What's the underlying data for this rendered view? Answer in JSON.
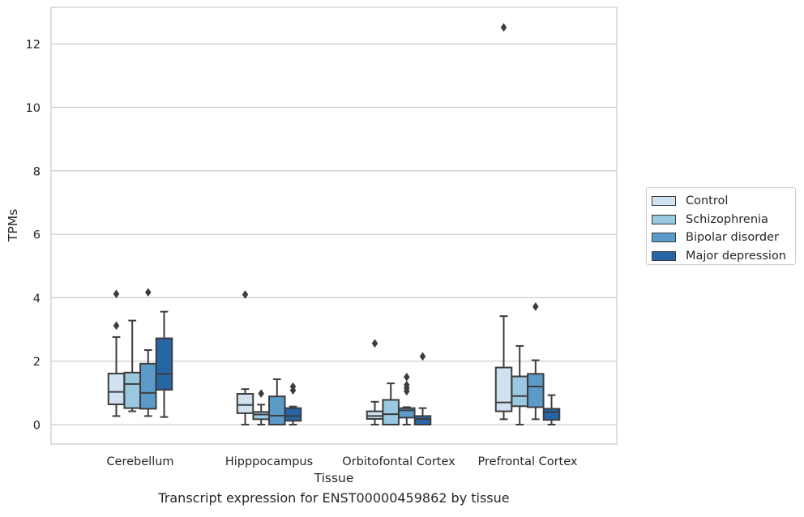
{
  "chart_data": {
    "type": "box",
    "title": "",
    "xlabel": "Tissue",
    "ylabel": "TPMs",
    "caption": "Transcript expression for ENST00000459862 by tissue",
    "ylim": [
      -0.6,
      13.1
    ],
    "yticks": [
      0,
      2,
      4,
      6,
      8,
      10,
      12
    ],
    "categories": [
      "Cerebellum",
      "Hipppocampus",
      "Orbitofontal Cortex",
      "Prefrontal Cortex"
    ],
    "grid": "horizontal",
    "legend_position": "outside-right",
    "series": [
      {
        "name": "Control",
        "color": "#d0e2f2",
        "boxes": [
          {
            "whisker_low": 0.27,
            "q1": 0.64,
            "median": 1.03,
            "q3": 1.61,
            "whisker_high": 2.76,
            "outliers": [
              3.12,
              4.12
            ]
          },
          {
            "whisker_low": 0.0,
            "q1": 0.36,
            "median": 0.62,
            "q3": 0.97,
            "whisker_high": 1.12,
            "outliers": [
              4.1
            ]
          },
          {
            "whisker_low": 0.0,
            "q1": 0.18,
            "median": 0.27,
            "q3": 0.42,
            "whisker_high": 0.72,
            "outliers": [
              2.56
            ]
          },
          {
            "whisker_low": 0.17,
            "q1": 0.42,
            "median": 0.7,
            "q3": 1.8,
            "whisker_high": 3.42,
            "outliers": [
              12.52
            ]
          }
        ]
      },
      {
        "name": "Schizophrenia",
        "color": "#9ac8e0",
        "boxes": [
          {
            "whisker_low": 0.42,
            "q1": 0.52,
            "median": 1.28,
            "q3": 1.64,
            "whisker_high": 3.28,
            "outliers": []
          },
          {
            "whisker_low": 0.0,
            "q1": 0.17,
            "median": 0.32,
            "q3": 0.4,
            "whisker_high": 0.63,
            "outliers": [
              0.98
            ]
          },
          {
            "whisker_low": 0.0,
            "q1": 0.0,
            "median": 0.33,
            "q3": 0.78,
            "whisker_high": 1.3,
            "outliers": []
          },
          {
            "whisker_low": 0.0,
            "q1": 0.58,
            "median": 0.9,
            "q3": 1.52,
            "whisker_high": 2.48,
            "outliers": []
          }
        ]
      },
      {
        "name": "Bipolar disorder",
        "color": "#5b9bc9",
        "boxes": [
          {
            "whisker_low": 0.27,
            "q1": 0.5,
            "median": 1.0,
            "q3": 1.92,
            "whisker_high": 2.35,
            "outliers": [
              4.17
            ]
          },
          {
            "whisker_low": 0.0,
            "q1": 0.0,
            "median": 0.28,
            "q3": 0.89,
            "whisker_high": 1.43,
            "outliers": []
          },
          {
            "whisker_low": 0.0,
            "q1": 0.22,
            "median": 0.45,
            "q3": 0.52,
            "whisker_high": 0.55,
            "outliers": [
              1.05,
              1.15,
              1.25,
              1.5
            ]
          },
          {
            "whisker_low": 0.17,
            "q1": 0.55,
            "median": 1.2,
            "q3": 1.6,
            "whisker_high": 2.03,
            "outliers": [
              3.72
            ]
          }
        ]
      },
      {
        "name": "Major depression",
        "color": "#2666a7",
        "boxes": [
          {
            "whisker_low": 0.24,
            "q1": 1.1,
            "median": 1.6,
            "q3": 2.72,
            "whisker_high": 3.56,
            "outliers": []
          },
          {
            "whisker_low": 0.0,
            "q1": 0.12,
            "median": 0.27,
            "q3": 0.52,
            "whisker_high": 0.57,
            "outliers": [
              1.08,
              1.2
            ]
          },
          {
            "whisker_low": 0.0,
            "q1": 0.0,
            "median": 0.18,
            "q3": 0.27,
            "whisker_high": 0.52,
            "outliers": [
              2.15
            ]
          },
          {
            "whisker_low": 0.0,
            "q1": 0.15,
            "median": 0.4,
            "q3": 0.5,
            "whisker_high": 0.93,
            "outliers": []
          }
        ]
      }
    ]
  }
}
